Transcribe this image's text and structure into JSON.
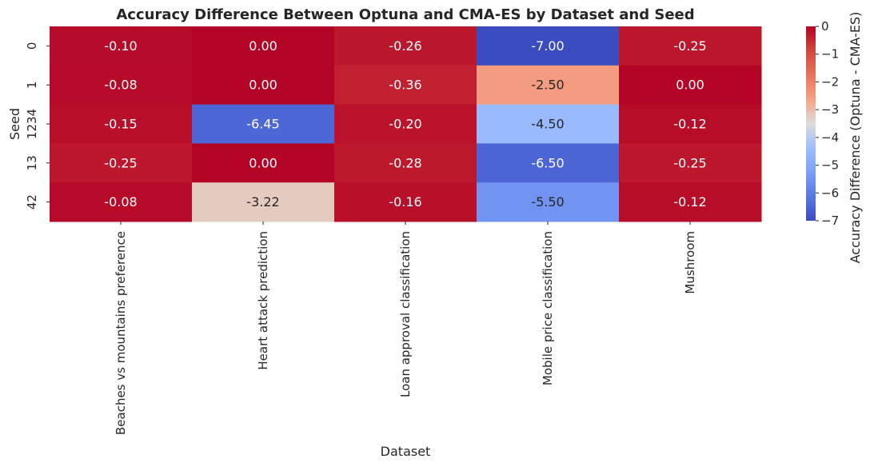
{
  "chart_data": {
    "type": "heatmap",
    "title": "Accuracy Difference Between Optuna and CMA-ES by Dataset and Seed",
    "xlabel": "Dataset",
    "ylabel": "Seed",
    "colorbar_label": "Accuracy Difference (Optuna - CMA-ES)",
    "colormap": "coolwarm",
    "x_categories": [
      "Beaches vs mountains preference",
      "Heart attack prediction",
      "Loan approval classification",
      "Mobile price classification",
      "Mushroom"
    ],
    "y_categories": [
      "0",
      "1",
      "1234",
      "13",
      "42"
    ],
    "values": [
      [
        -0.1,
        0.0,
        -0.26,
        -7.0,
        -0.25
      ],
      [
        -0.08,
        0.0,
        -0.36,
        -2.5,
        0.0
      ],
      [
        -0.15,
        -6.45,
        -0.2,
        -4.5,
        -0.12
      ],
      [
        -0.25,
        0.0,
        -0.28,
        -6.5,
        -0.25
      ],
      [
        -0.08,
        -3.22,
        -0.16,
        -5.5,
        -0.12
      ]
    ],
    "cell_labels": [
      [
        "-0.10",
        "0.00",
        "-0.26",
        "-7.00",
        "-0.25"
      ],
      [
        "-0.08",
        "0.00",
        "-0.36",
        "-2.50",
        "0.00"
      ],
      [
        "-0.15",
        "-6.45",
        "-0.20",
        "-4.50",
        "-0.12"
      ],
      [
        "-0.25",
        "0.00",
        "-0.28",
        "-6.50",
        "-0.25"
      ],
      [
        "-0.08",
        "-3.22",
        "-0.16",
        "-5.50",
        "-0.12"
      ]
    ],
    "vmin": -7,
    "vmax": 0,
    "colorbar_ticks": [
      "0",
      "−1",
      "−2",
      "−3",
      "−4",
      "−5",
      "−6",
      "−7"
    ],
    "colorbar_tick_values": [
      0,
      -1,
      -2,
      -3,
      -4,
      -5,
      -6,
      -7
    ]
  }
}
